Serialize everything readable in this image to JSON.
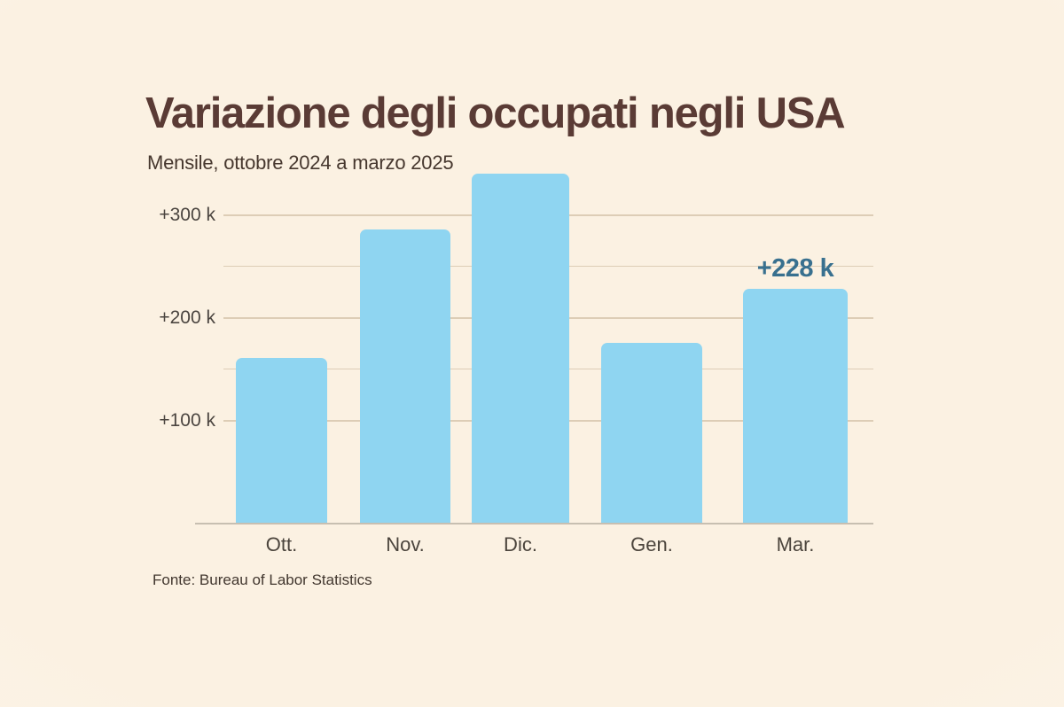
{
  "header": {
    "title": "Variazione degli occupati negli USA",
    "subtitle": "Mensile, ottobre 2024 a marzo 2025"
  },
  "footer": {
    "source": "Fonte: Bureau of Labor Statistics"
  },
  "colors": {
    "background_center": "#FBF1E2",
    "background_edge": "#FDF6EE",
    "title": "#5A3B35",
    "subtitle": "#46372E",
    "tick_text": "#4B4540",
    "category_text": "#4B443C",
    "source_text": "#41362E",
    "bar": "#8FD5F1",
    "annotation": "#38708F",
    "gridline": "#DDCDB6",
    "axis": "#C7BFB1"
  },
  "chart_data": {
    "type": "bar",
    "title": "Variazione degli occupati negli USA",
    "subtitle": "Mensile, ottobre 2024 a marzo 2025",
    "source": "Fonte: Bureau of Labor Statistics",
    "categories": [
      "Ott.",
      "Nov.",
      "Dic.",
      "Gen.",
      "Mar."
    ],
    "values": [
      160,
      285,
      340,
      175,
      228
    ],
    "unit": "k",
    "xlabel": "",
    "ylabel": "",
    "ylim": [
      0,
      360
    ],
    "yticks": [
      {
        "value": 100,
        "label": "+100 k"
      },
      {
        "value": 200,
        "label": "+200 k"
      },
      {
        "value": 300,
        "label": "+300 k"
      }
    ],
    "minor_gridlines": [
      150,
      250
    ],
    "grid": true,
    "legend": false,
    "annotations": [
      {
        "category": "Mar.",
        "text": "+228 k"
      }
    ]
  }
}
